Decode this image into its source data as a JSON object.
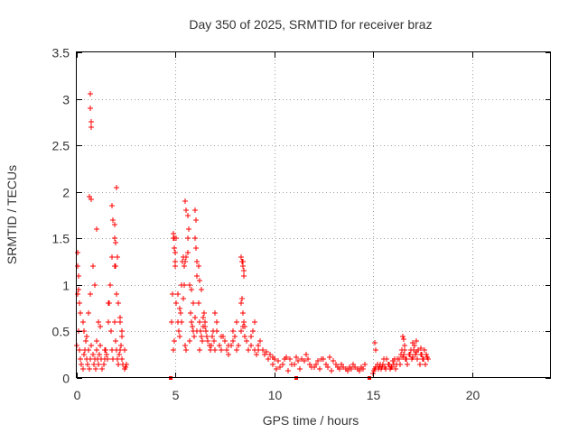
{
  "chart_data": {
    "type": "scatter",
    "title": "Day 350 of 2025, SRMTID for receiver braz",
    "xlabel": "GPS time / hours",
    "ylabel": "SRMTID / TECUs",
    "xlim": [
      0,
      24
    ],
    "ylim": [
      0,
      3.5
    ],
    "xticks": [
      0,
      5,
      10,
      15,
      20
    ],
    "xtick_labels": [
      "0",
      "5",
      "10",
      "15",
      "20"
    ],
    "yticks": [
      0,
      0.5,
      1,
      1.5,
      2,
      2.5,
      3,
      3.5
    ],
    "ytick_labels": [
      "0",
      "0.5",
      "1",
      "1.5",
      "2",
      "2.5",
      "3",
      "3.5"
    ],
    "grid": true,
    "marker": "+",
    "color": "#ff0000",
    "series": [
      {
        "name": "SRMTID",
        "x": [
          0.0,
          0.05,
          0.1,
          0.15,
          0.2,
          0.25,
          0.3,
          0.35,
          0.4,
          0.45,
          0.5,
          0.55,
          0.6,
          0.65,
          0.7,
          0.75,
          0.8,
          0.85,
          0.9,
          0.95,
          1.0,
          1.05,
          1.1,
          1.15,
          1.2,
          1.25,
          1.3,
          1.35,
          1.4,
          1.45,
          1.5,
          1.55,
          1.6,
          1.65,
          1.7,
          1.75,
          1.8,
          1.85,
          1.9,
          1.95,
          2.0,
          2.05,
          2.1,
          2.15,
          2.2,
          2.25,
          2.3,
          2.35,
          2.4,
          2.45,
          2.5,
          0.05,
          0.1,
          0.15,
          0.3,
          0.35,
          0.5,
          0.6,
          0.7,
          0.9,
          1.0,
          1.2,
          1.4,
          1.6,
          1.8,
          1.9,
          2.0,
          2.2,
          2.3,
          2.4,
          0.05,
          0.1,
          0.2,
          0.7,
          0.7,
          0.72,
          0.72,
          0.65,
          0.75,
          0.8,
          1.0,
          1.1,
          1.8,
          1.85,
          1.9,
          1.95,
          2.0,
          2.05,
          1.9,
          1.95,
          2.1,
          2.2,
          2.3,
          4.8,
          4.85,
          4.9,
          4.95,
          5.0,
          5.05,
          5.1,
          5.15,
          5.2,
          5.25,
          5.3,
          5.35,
          5.4,
          5.45,
          5.5,
          5.55,
          5.6,
          5.65,
          5.7,
          5.75,
          5.8,
          5.85,
          5.9,
          5.95,
          6.0,
          6.05,
          6.1,
          6.15,
          6.2,
          6.25,
          6.3,
          6.35,
          6.4,
          6.45,
          6.5,
          6.55,
          6.6,
          6.65,
          6.7,
          6.75,
          6.8,
          6.85,
          6.9,
          6.95,
          7.0,
          4.9,
          4.95,
          5.0,
          5.1,
          5.2,
          5.3,
          5.4,
          5.5,
          5.55,
          5.6,
          5.7,
          5.8,
          5.9,
          6.0,
          6.1,
          6.2,
          6.3,
          6.4,
          6.5,
          6.6,
          4.9,
          4.95,
          5.0,
          5.05,
          5.45,
          5.5,
          5.55,
          5.6,
          6.0,
          6.05,
          6.1,
          6.15,
          6.2,
          7.0,
          7.1,
          7.2,
          7.3,
          7.4,
          7.5,
          7.6,
          7.7,
          7.8,
          7.9,
          8.0,
          8.1,
          8.2,
          8.3,
          8.4,
          8.5,
          8.6,
          8.7,
          8.8,
          8.9,
          9.0,
          9.1,
          9.2,
          9.3,
          9.4,
          9.5,
          9.6,
          9.7,
          9.8,
          9.9,
          7.1,
          7.3,
          7.5,
          7.7,
          7.9,
          8.1,
          8.3,
          8.35,
          8.4,
          8.45,
          8.5,
          8.6,
          8.8,
          9.0,
          9.2,
          9.4,
          8.3,
          8.35,
          8.4,
          8.45,
          8.4,
          8.45,
          9.8,
          10.0,
          10.2,
          10.4,
          10.6,
          10.8,
          11.0,
          11.2,
          11.4,
          11.6,
          11.8,
          12.0,
          12.2,
          12.4,
          12.6,
          12.8,
          13.0,
          13.2,
          13.4,
          13.6,
          13.8,
          14.0,
          14.2,
          14.4,
          14.6,
          9.9,
          10.1,
          10.3,
          10.5,
          10.7,
          10.9,
          11.1,
          11.3,
          11.5,
          11.7,
          11.9,
          12.1,
          12.3,
          12.5,
          12.7,
          12.9,
          13.1,
          13.3,
          13.5,
          13.7,
          13.9,
          14.1,
          14.3,
          14.5,
          15.0,
          15.1,
          15.2,
          15.3,
          15.4,
          15.5,
          15.6,
          15.7,
          15.8,
          15.9,
          16.0,
          16.1,
          16.2,
          16.3,
          16.4,
          16.5,
          16.6,
          16.7,
          16.8,
          16.9,
          17.0,
          17.1,
          17.2,
          17.3,
          17.4,
          17.5,
          17.6,
          17.7,
          17.8,
          15.05,
          15.15,
          15.25,
          15.35,
          15.45,
          15.55,
          15.65,
          15.75,
          15.85,
          15.95,
          16.05,
          16.15,
          16.25,
          16.35,
          16.45,
          16.55,
          16.65,
          16.75,
          16.85,
          16.95,
          17.05,
          17.15,
          17.25,
          17.35,
          17.45,
          17.55,
          17.65,
          17.75,
          15.1,
          15.15,
          16.5,
          16.55,
          16.6,
          17.0,
          17.2,
          17.4,
          4.75,
          11.1,
          14.8
        ],
        "y": [
          0.35,
          0.9,
          0.5,
          0.3,
          0.2,
          0.15,
          0.1,
          0.25,
          0.3,
          0.4,
          0.2,
          0.15,
          0.3,
          0.1,
          0.2,
          0.35,
          0.25,
          0.15,
          0.2,
          0.1,
          0.3,
          0.2,
          0.15,
          0.25,
          0.35,
          0.2,
          0.1,
          0.15,
          0.2,
          0.3,
          0.25,
          0.2,
          0.6,
          0.8,
          1.0,
          0.5,
          0.3,
          0.2,
          0.6,
          0.4,
          0.3,
          0.2,
          0.15,
          0.25,
          0.3,
          0.35,
          0.2,
          0.15,
          0.1,
          0.12,
          0.15,
          1.2,
          1.1,
          0.8,
          0.6,
          0.5,
          0.45,
          0.7,
          0.9,
          1.0,
          0.4,
          0.55,
          0.3,
          0.8,
          1.3,
          1.2,
          0.9,
          0.65,
          0.45,
          0.3,
          1.35,
          0.95,
          0.7,
          3.05,
          2.9,
          2.75,
          2.7,
          1.95,
          1.92,
          1.2,
          1.6,
          0.6,
          1.85,
          1.7,
          1.5,
          1.45,
          2.05,
          1.3,
          1.65,
          1.2,
          0.8,
          0.6,
          0.5,
          0.6,
          0.9,
          1.5,
          1.4,
          1.2,
          0.8,
          0.6,
          0.5,
          0.45,
          0.7,
          1.0,
          1.25,
          1.3,
          1.0,
          1.9,
          1.8,
          1.75,
          1.6,
          1.0,
          0.7,
          0.6,
          0.55,
          0.5,
          0.45,
          1.8,
          1.7,
          1.1,
          0.8,
          0.6,
          0.5,
          0.45,
          0.4,
          0.55,
          0.7,
          0.6,
          0.5,
          0.45,
          0.4,
          0.35,
          0.3,
          0.35,
          0.45,
          0.5,
          0.4,
          0.3,
          0.3,
          0.4,
          1.25,
          0.9,
          0.75,
          0.6,
          0.85,
          0.35,
          0.3,
          1.5,
          0.4,
          0.95,
          0.8,
          0.65,
          0.5,
          0.3,
          0.95,
          0.65,
          0.55,
          0.45,
          1.55,
          1.5,
          1.35,
          1.5,
          1.2,
          1.25,
          1.3,
          1.35,
          1.5,
          1.4,
          1.25,
          1.2,
          1.05,
          0.7,
          0.5,
          0.35,
          0.3,
          0.45,
          0.4,
          0.3,
          0.25,
          0.35,
          0.4,
          0.45,
          0.3,
          0.35,
          0.5,
          0.55,
          0.45,
          0.4,
          0.3,
          0.35,
          0.5,
          0.3,
          0.25,
          0.3,
          0.4,
          0.3,
          0.25,
          0.28,
          0.2,
          0.25,
          0.22,
          0.6,
          0.45,
          0.4,
          0.35,
          0.5,
          0.6,
          0.8,
          0.85,
          0.7,
          0.6,
          0.55,
          0.4,
          0.45,
          0.6,
          0.35,
          0.3,
          1.3,
          1.25,
          1.2,
          1.1,
          1.25,
          1.15,
          0.25,
          0.2,
          0.18,
          0.15,
          0.22,
          0.2,
          0.15,
          0.18,
          0.2,
          0.25,
          0.15,
          0.12,
          0.18,
          0.2,
          0.15,
          0.22,
          0.18,
          0.12,
          0.15,
          0.1,
          0.12,
          0.15,
          0.1,
          0.12,
          0.15,
          0.15,
          0.1,
          0.12,
          0.2,
          0.08,
          0.15,
          0.22,
          0.1,
          0.18,
          0.2,
          0.12,
          0.15,
          0.1,
          0.2,
          0.12,
          0.08,
          0.15,
          0.1,
          0.12,
          0.08,
          0.1,
          0.12,
          0.08,
          0.1,
          0.05,
          0.1,
          0.15,
          0.12,
          0.1,
          0.15,
          0.12,
          0.2,
          0.15,
          0.12,
          0.18,
          0.2,
          0.15,
          0.2,
          0.25,
          0.22,
          0.3,
          0.2,
          0.25,
          0.3,
          0.22,
          0.35,
          0.28,
          0.3,
          0.25,
          0.2,
          0.3,
          0.25,
          0.2,
          0.08,
          0.12,
          0.1,
          0.15,
          0.12,
          0.2,
          0.1,
          0.15,
          0.1,
          0.12,
          0.15,
          0.1,
          0.2,
          0.15,
          0.3,
          0.25,
          0.2,
          0.15,
          0.25,
          0.2,
          0.3,
          0.25,
          0.2,
          0.15,
          0.25,
          0.2,
          0.15,
          0.22,
          0.38,
          0.3,
          0.45,
          0.42,
          0.35,
          0.38,
          0.4,
          0.32,
          0.0,
          0.0,
          0.0
        ]
      }
    ]
  }
}
